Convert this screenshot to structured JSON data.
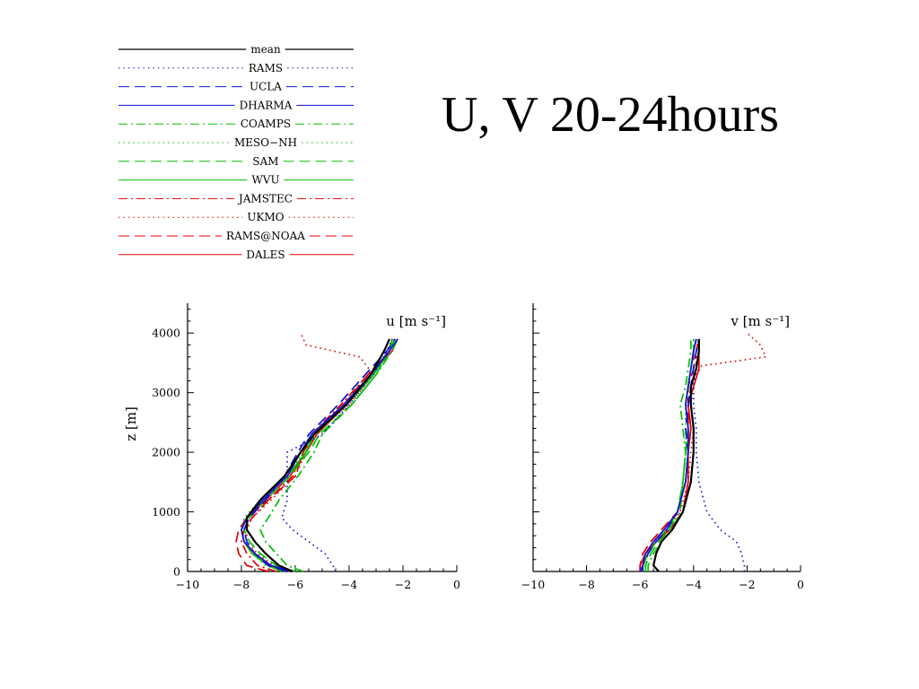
{
  "title": "U, V 20-24hours",
  "colors": {
    "mean": "#000000",
    "RAMS": "#1010d0",
    "UCLA": "#1010d0",
    "DHARMA": "#1010d0",
    "COAMPS": "#00c000",
    "MESO-NH": "#00c000",
    "SAM": "#00c000",
    "WVU": "#00c000",
    "JAMSTEC": "#e00000",
    "UKMO": "#e00000",
    "RAMS@NOAA": "#e00000",
    "DALES": "#e00000"
  },
  "legend": [
    {
      "name": "mean",
      "color": "#000000",
      "dash": "solid",
      "width": 1.2
    },
    {
      "name": "RAMS",
      "color": "#1010d0",
      "dash": "dot",
      "width": 1
    },
    {
      "name": "UCLA",
      "color": "#1010d0",
      "dash": "dash",
      "width": 1
    },
    {
      "name": "DHARMA",
      "color": "#1010d0",
      "dash": "solid",
      "width": 1
    },
    {
      "name": "COAMPS",
      "color": "#00c000",
      "dash": "dashdot",
      "width": 1
    },
    {
      "name": "MESO−NH",
      "color": "#00c000",
      "dash": "dot",
      "width": 1
    },
    {
      "name": "SAM",
      "color": "#00c000",
      "dash": "dash",
      "width": 1
    },
    {
      "name": "WVU",
      "color": "#00c000",
      "dash": "solid",
      "width": 1
    },
    {
      "name": "JAMSTEC",
      "color": "#e00000",
      "dash": "dashdot",
      "width": 1
    },
    {
      "name": "UKMO",
      "color": "#e00000",
      "dash": "dot",
      "width": 1
    },
    {
      "name": "RAMS@NOAA",
      "color": "#e00000",
      "dash": "dash",
      "width": 1
    },
    {
      "name": "DALES",
      "color": "#e00000",
      "dash": "solid",
      "width": 1
    }
  ],
  "chart_data": [
    {
      "type": "line",
      "xlabel": "u [m s⁻¹]",
      "ylabel": "z [m]",
      "xlim": [
        -10,
        0
      ],
      "ylim": [
        0,
        4500
      ],
      "xticks": [
        -10,
        -8,
        -6,
        -4,
        -2,
        0
      ],
      "xtick_labels": [
        "−10",
        "−8",
        "−6",
        "−4",
        "−2",
        "0"
      ],
      "yticks": [
        0,
        1000,
        2000,
        3000,
        4000
      ],
      "ytick_labels": [
        "0",
        "1000",
        "2000",
        "3000",
        "4000"
      ],
      "grid": false,
      "series": [
        {
          "name": "DALES",
          "x": [
            -6.3,
            -7.0,
            -7.6,
            -7.9,
            -8.0,
            -7.8,
            -7.1,
            -6.2,
            -5.6,
            -5.2,
            -4.1,
            -3.2,
            -2.4,
            -2.2
          ],
          "y": [
            0,
            100,
            300,
            500,
            700,
            900,
            1200,
            1600,
            2000,
            2300,
            2800,
            3300,
            3700,
            3900
          ]
        },
        {
          "name": "RAMS@NOAA",
          "x": [
            -7.0,
            -7.8,
            -8.1,
            -8.2,
            -8.1,
            -7.8,
            -7.0,
            -6.0,
            -5.7,
            -5.3,
            -4.2,
            -3.3,
            -2.5,
            -2.4
          ],
          "y": [
            0,
            100,
            300,
            500,
            700,
            900,
            1200,
            1600,
            2000,
            2300,
            2800,
            3300,
            3700,
            3900
          ]
        },
        {
          "name": "JAMSTEC",
          "x": [
            -6.7,
            -7.4,
            -7.8,
            -8.0,
            -7.9,
            -7.6,
            -7.0,
            -6.1,
            -5.7,
            -5.4,
            -4.3,
            -3.3,
            -2.5,
            -2.3
          ],
          "y": [
            0,
            100,
            300,
            500,
            700,
            900,
            1200,
            1600,
            2000,
            2300,
            2800,
            3300,
            3700,
            3900
          ]
        },
        {
          "name": "UKMO",
          "x": [
            -6.2,
            -6.8,
            -7.4,
            -7.8,
            -7.8,
            -7.6,
            -6.9,
            -6.0,
            -5.6,
            -5.3,
            -4.0,
            -3.1,
            -3.6,
            -5.6,
            -5.8
          ],
          "y": [
            0,
            100,
            300,
            500,
            700,
            900,
            1200,
            1600,
            2000,
            2300,
            2800,
            3300,
            3600,
            3800,
            4000
          ]
        },
        {
          "name": "WVU",
          "x": [
            -6.5,
            -7.0,
            -7.6,
            -7.9,
            -8.0,
            -7.8,
            -7.2,
            -6.3,
            -5.6,
            -5.3,
            -4.1,
            -3.1,
            -2.5,
            -2.3
          ],
          "y": [
            0,
            100,
            300,
            500,
            700,
            900,
            1200,
            1600,
            2000,
            2300,
            2800,
            3300,
            3700,
            3900
          ]
        },
        {
          "name": "SAM",
          "x": [
            -6.0,
            -6.7,
            -7.3,
            -7.7,
            -7.9,
            -7.7,
            -7.1,
            -6.2,
            -5.5,
            -5.1,
            -3.9,
            -3.0,
            -2.5,
            -2.4
          ],
          "y": [
            0,
            100,
            300,
            500,
            700,
            900,
            1200,
            1600,
            2000,
            2300,
            2800,
            3300,
            3700,
            3900
          ]
        },
        {
          "name": "MESO−NH",
          "x": [
            -6.4,
            -7.1,
            -7.6,
            -7.9,
            -8.0,
            -7.9,
            -7.3,
            -6.3,
            -5.7,
            -5.2,
            -4.1,
            -3.2,
            -2.5,
            -2.3
          ],
          "y": [
            0,
            100,
            300,
            500,
            700,
            900,
            1200,
            1600,
            2000,
            2300,
            2800,
            3300,
            3700,
            3900
          ]
        },
        {
          "name": "COAMPS",
          "x": [
            -5.7,
            -6.3,
            -6.7,
            -7.1,
            -7.3,
            -7.0,
            -6.6,
            -5.9,
            -5.3,
            -5.0,
            -3.9,
            -3.0,
            -2.4,
            -2.2
          ],
          "y": [
            0,
            100,
            300,
            500,
            700,
            900,
            1200,
            1600,
            2000,
            2300,
            2800,
            3300,
            3700,
            3900
          ]
        },
        {
          "name": "RAMS",
          "x": [
            -4.5,
            -4.6,
            -4.9,
            -5.5,
            -6.1,
            -6.5,
            -6.3,
            -6.3,
            -6.3,
            -5.0,
            -4.0,
            -3.1,
            -2.6,
            -2.4
          ],
          "y": [
            0,
            100,
            300,
            500,
            700,
            900,
            1200,
            1600,
            2000,
            2300,
            2800,
            3300,
            3700,
            3900
          ]
        },
        {
          "name": "UCLA",
          "x": [
            -6.3,
            -7.0,
            -7.5,
            -7.8,
            -7.9,
            -7.7,
            -7.1,
            -6.4,
            -5.9,
            -5.5,
            -4.4,
            -3.4,
            -2.6,
            -2.3
          ],
          "y": [
            0,
            100,
            300,
            500,
            700,
            900,
            1200,
            1600,
            2000,
            2300,
            2800,
            3300,
            3700,
            3900
          ]
        },
        {
          "name": "DHARMA",
          "x": [
            -6.1,
            -6.9,
            -7.5,
            -7.9,
            -8.0,
            -7.8,
            -7.2,
            -6.3,
            -5.8,
            -5.4,
            -4.2,
            -3.2,
            -2.5,
            -2.2
          ],
          "y": [
            0,
            100,
            300,
            500,
            700,
            900,
            1200,
            1600,
            2000,
            2300,
            2800,
            3300,
            3700,
            3900
          ]
        },
        {
          "name": "mean",
          "x": [
            -6.1,
            -6.6,
            -7.1,
            -7.5,
            -7.8,
            -7.8,
            -7.3,
            -6.4,
            -5.8,
            -5.3,
            -4.1,
            -3.2,
            -2.7,
            -2.5
          ],
          "y": [
            0,
            100,
            300,
            500,
            700,
            900,
            1200,
            1600,
            2000,
            2300,
            2800,
            3300,
            3700,
            3900
          ]
        }
      ]
    },
    {
      "type": "line",
      "xlabel": "v [m s⁻¹]",
      "xlim": [
        -10,
        0
      ],
      "ylim": [
        0,
        4500
      ],
      "xticks": [
        -10,
        -8,
        -6,
        -4,
        -2,
        0
      ],
      "xtick_labels": [
        "−10",
        "−8",
        "−6",
        "−4",
        "−2",
        "0"
      ],
      "yticks": [
        0,
        1000,
        2000,
        3000,
        4000
      ],
      "grid": false,
      "series": [
        {
          "name": "DALES",
          "x": [
            -6.0,
            -6.0,
            -5.8,
            -5.4,
            -4.9,
            -4.4,
            -4.2,
            -4.2,
            -4.1,
            -4.2,
            -4.0,
            -3.8,
            -3.8,
            -3.8
          ],
          "y": [
            0,
            100,
            300,
            500,
            700,
            1000,
            1500,
            2000,
            2400,
            2800,
            3100,
            3400,
            3700,
            3900
          ]
        },
        {
          "name": "RAMS@NOAA",
          "x": [
            -6.0,
            -6.0,
            -5.9,
            -5.6,
            -5.2,
            -4.6,
            -4.3,
            -4.2,
            -4.2,
            -4.2,
            -4.2,
            -4.0,
            -4.0,
            -3.9
          ],
          "y": [
            0,
            100,
            300,
            500,
            700,
            1000,
            1500,
            2000,
            2400,
            2800,
            3100,
            3400,
            3700,
            3900
          ]
        },
        {
          "name": "JAMSTEC",
          "x": [
            -6.0,
            -5.9,
            -5.8,
            -5.5,
            -5.1,
            -4.6,
            -4.3,
            -4.2,
            -4.1,
            -4.2,
            -4.1,
            -3.9,
            -3.9,
            -3.8
          ],
          "y": [
            0,
            100,
            300,
            500,
            700,
            1000,
            1500,
            2000,
            2400,
            2800,
            3100,
            3400,
            3700,
            3900
          ]
        },
        {
          "name": "UKMO",
          "x": [
            -6.0,
            -5.9,
            -5.8,
            -5.5,
            -5.0,
            -4.5,
            -4.2,
            -4.1,
            -4.0,
            -4.1,
            -4.0,
            -3.7,
            -1.3,
            -1.5,
            -2.0
          ],
          "y": [
            0,
            100,
            300,
            500,
            700,
            1000,
            1500,
            2000,
            2400,
            2800,
            3200,
            3450,
            3600,
            3800,
            4000
          ]
        },
        {
          "name": "WVU",
          "x": [
            -5.9,
            -5.9,
            -5.7,
            -5.4,
            -5.0,
            -4.6,
            -4.3,
            -4.2,
            -4.2,
            -4.3,
            -4.2,
            -4.1,
            -4.0,
            -3.9
          ],
          "y": [
            0,
            100,
            300,
            500,
            700,
            1000,
            1500,
            2000,
            2400,
            2800,
            3100,
            3400,
            3700,
            3900
          ]
        },
        {
          "name": "SAM",
          "x": [
            -5.8,
            -5.8,
            -5.6,
            -5.3,
            -4.9,
            -4.6,
            -4.4,
            -4.3,
            -4.2,
            -4.3,
            -4.2,
            -4.1,
            -4.0,
            -4.0
          ],
          "y": [
            0,
            100,
            300,
            500,
            700,
            1000,
            1500,
            2000,
            2400,
            2800,
            3100,
            3400,
            3700,
            3900
          ]
        },
        {
          "name": "MESO−NH",
          "x": [
            -5.9,
            -5.8,
            -5.7,
            -5.4,
            -5.0,
            -4.6,
            -4.4,
            -4.3,
            -4.3,
            -4.3,
            -4.2,
            -4.1,
            -4.0,
            -4.0
          ],
          "y": [
            0,
            100,
            300,
            500,
            700,
            1000,
            1500,
            2000,
            2400,
            2800,
            3100,
            3400,
            3700,
            3900
          ]
        },
        {
          "name": "COAMPS",
          "x": [
            -5.7,
            -5.7,
            -5.5,
            -5.2,
            -4.8,
            -4.5,
            -4.4,
            -4.3,
            -4.4,
            -4.5,
            -4.3,
            -4.2,
            -4.1,
            -4.1
          ],
          "y": [
            0,
            100,
            300,
            500,
            700,
            1000,
            1500,
            2000,
            2400,
            2800,
            3100,
            3400,
            3700,
            3900
          ]
        },
        {
          "name": "RAMS",
          "x": [
            -2.1,
            -2.1,
            -2.2,
            -2.4,
            -3.0,
            -3.5,
            -3.8,
            -3.9,
            -3.9,
            -4.0,
            -4.0,
            -3.9,
            -3.8,
            -3.8
          ],
          "y": [
            0,
            100,
            300,
            500,
            700,
            1000,
            1500,
            2000,
            2400,
            2800,
            3100,
            3400,
            3700,
            3900
          ]
        },
        {
          "name": "UCLA",
          "x": [
            -6.0,
            -5.9,
            -5.7,
            -5.4,
            -5.0,
            -4.6,
            -4.3,
            -4.2,
            -4.3,
            -4.2,
            -4.1,
            -4.0,
            -3.9,
            -3.8
          ],
          "y": [
            0,
            100,
            300,
            500,
            700,
            1000,
            1500,
            2000,
            2400,
            2800,
            3100,
            3400,
            3700,
            3900
          ]
        },
        {
          "name": "DHARMA",
          "x": [
            -5.9,
            -5.9,
            -5.8,
            -5.5,
            -5.1,
            -4.6,
            -4.3,
            -4.2,
            -4.2,
            -4.3,
            -4.2,
            -4.1,
            -4.0,
            -3.9
          ],
          "y": [
            0,
            100,
            300,
            500,
            700,
            1000,
            1500,
            2000,
            2400,
            2800,
            3100,
            3400,
            3700,
            3900
          ]
        },
        {
          "name": "mean",
          "x": [
            -5.3,
            -5.5,
            -5.4,
            -5.2,
            -4.8,
            -4.4,
            -4.1,
            -4.0,
            -4.0,
            -4.1,
            -4.1,
            -3.9,
            -3.8,
            -3.8
          ],
          "y": [
            0,
            100,
            300,
            500,
            700,
            1000,
            1500,
            2000,
            2400,
            2800,
            3100,
            3400,
            3700,
            3900
          ]
        }
      ]
    }
  ]
}
